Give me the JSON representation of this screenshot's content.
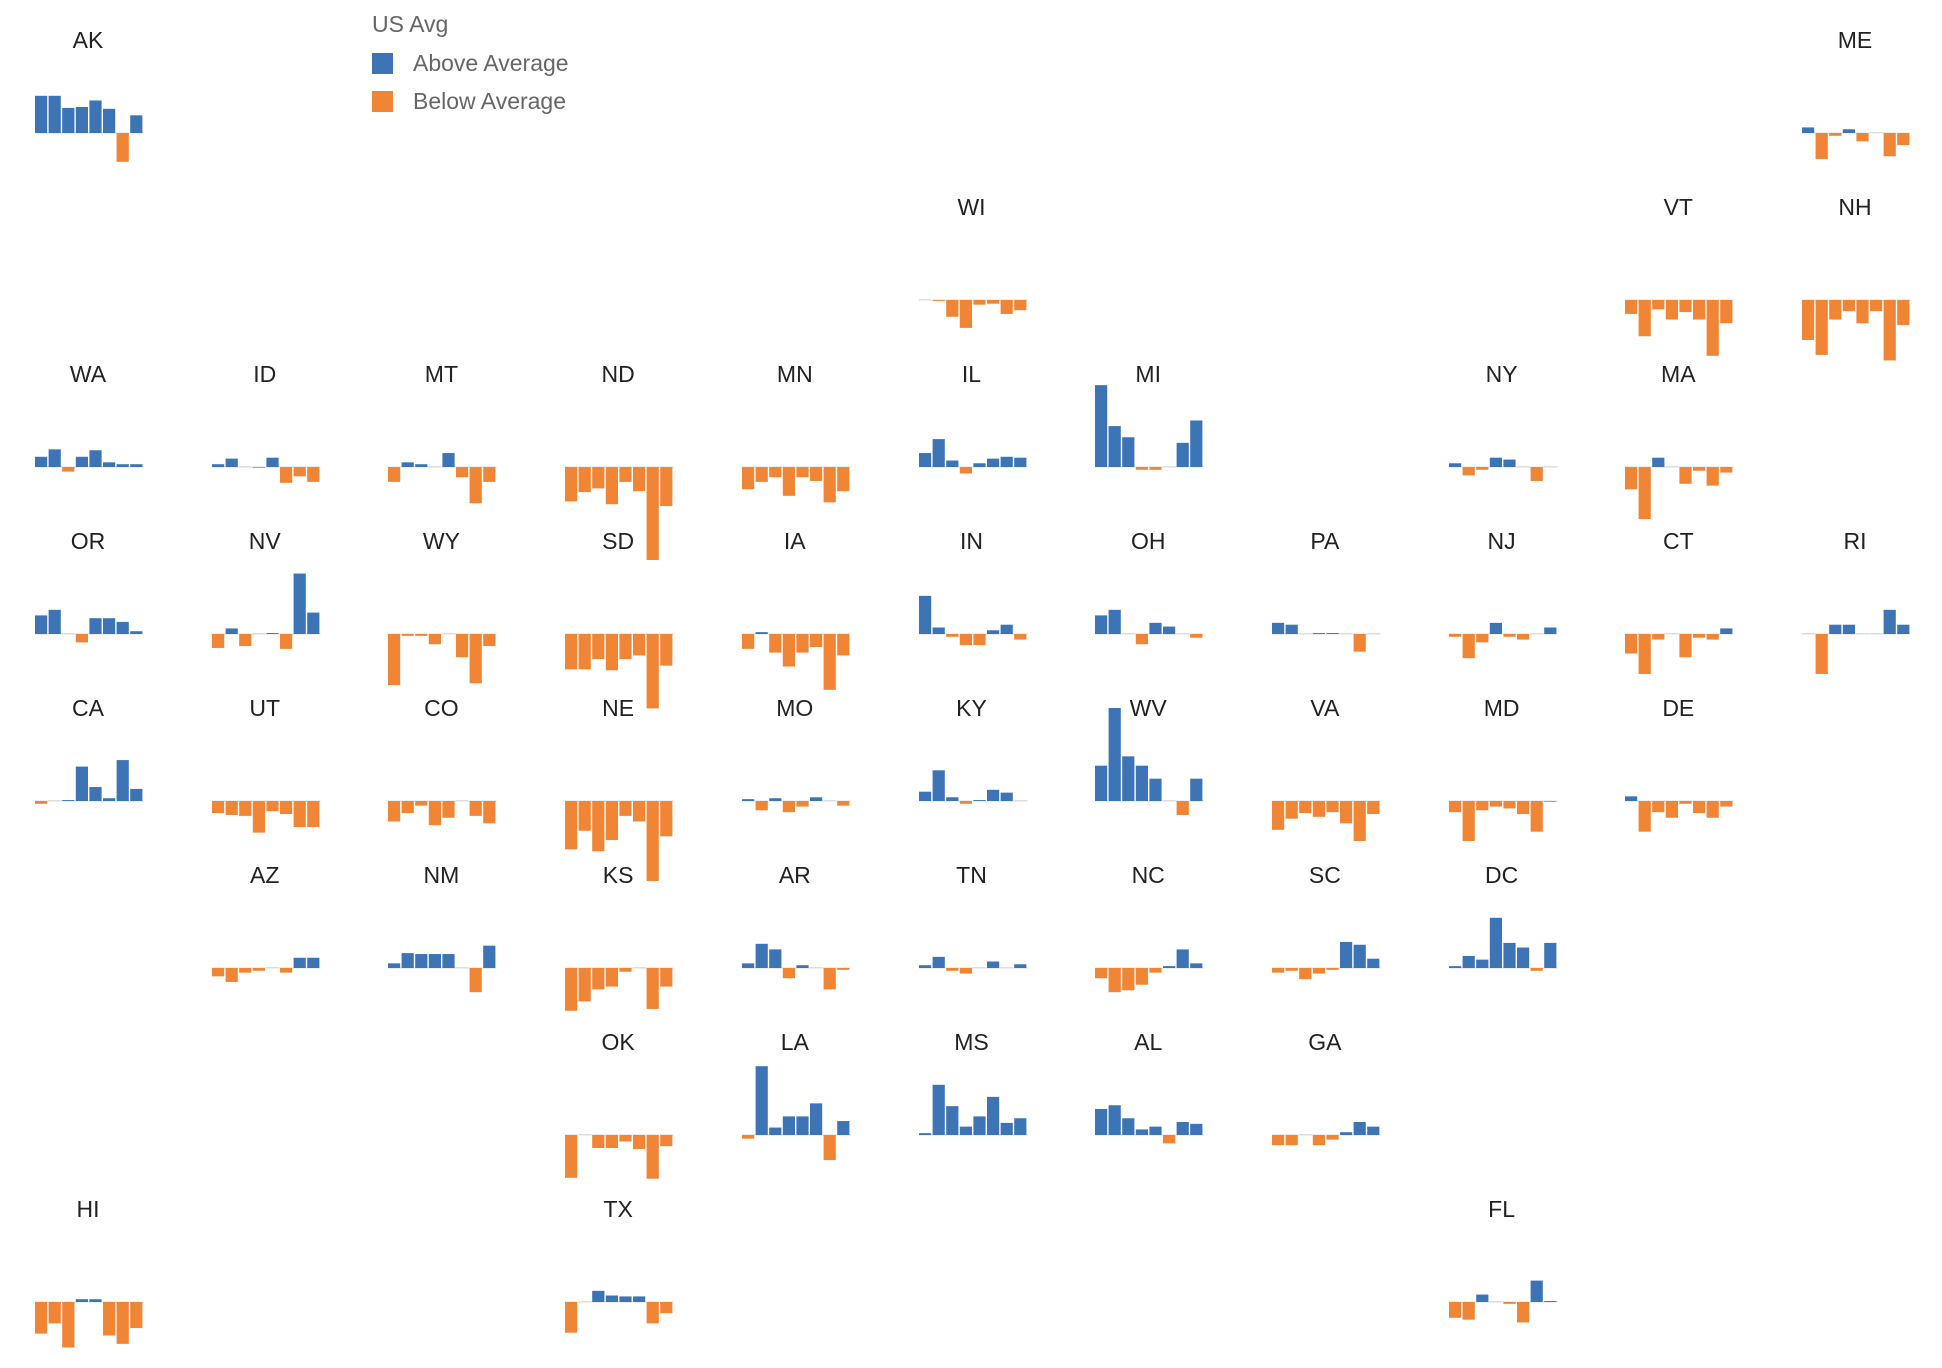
{
  "legend": {
    "title": "US Avg",
    "above_label": "Above Average",
    "below_label": "Below Average"
  },
  "colors": {
    "above": "#3d74b5",
    "below": "#f08535",
    "baseline": "#dddddd"
  },
  "chart_data": {
    "type": "bar",
    "layout": "tile-grid map of small-multiple bar charts",
    "legend_placement": "top-left",
    "grid": false,
    "bars_per_state": 8,
    "value_unit": "difference from US average (approx., relative scale)",
    "ylim": [
      -9,
      9
    ],
    "states": [
      {
        "state": "AK",
        "row": 0,
        "col": 0,
        "values": [
          4,
          4,
          2.7,
          2.8,
          3.5,
          2.6,
          -3.1,
          1.9
        ]
      },
      {
        "state": "ME",
        "row": 0,
        "col": 10,
        "values": [
          0.6,
          -2.8,
          -0.3,
          0.4,
          -0.9,
          0,
          -2.5,
          -1.3
        ]
      },
      {
        "state": "WI",
        "row": 1,
        "col": 5,
        "values": [
          0,
          -0.1,
          -1.8,
          -3,
          -0.5,
          -0.4,
          -1.5,
          -1.1
        ]
      },
      {
        "state": "VT",
        "row": 1,
        "col": 9,
        "values": [
          -1.5,
          -3.9,
          -1,
          -2.1,
          -1.3,
          -2.1,
          -6,
          -2.5
        ]
      },
      {
        "state": "NH",
        "row": 1,
        "col": 10,
        "values": [
          -4.3,
          -5.9,
          -2.1,
          -1.2,
          -2.5,
          -1.2,
          -6.5,
          -2.7
        ]
      },
      {
        "state": "WA",
        "row": 2,
        "col": 0,
        "values": [
          1.1,
          1.9,
          -0.5,
          1.1,
          1.8,
          0.5,
          0.3,
          0.3
        ]
      },
      {
        "state": "ID",
        "row": 2,
        "col": 1,
        "values": [
          0.3,
          0.9,
          0,
          -0.1,
          1,
          -1.7,
          -1,
          -1.6
        ]
      },
      {
        "state": "MT",
        "row": 2,
        "col": 2,
        "values": [
          -1.6,
          0.5,
          0.3,
          0,
          1.5,
          -1.1,
          -3.9,
          -1.6
        ]
      },
      {
        "state": "ND",
        "row": 2,
        "col": 3,
        "values": [
          -3.7,
          -2.7,
          -2.3,
          -4,
          -1.6,
          -2.6,
          -10,
          -4.2
        ]
      },
      {
        "state": "MN",
        "row": 2,
        "col": 4,
        "values": [
          -2.4,
          -1.6,
          -1.1,
          -3.1,
          -1.1,
          -1.5,
          -3.8,
          -2.6
        ]
      },
      {
        "state": "IL",
        "row": 2,
        "col": 5,
        "values": [
          1.5,
          3,
          0.7,
          -0.7,
          0.4,
          0.9,
          1.1,
          1
        ]
      },
      {
        "state": "MI",
        "row": 2,
        "col": 6,
        "values": [
          8.8,
          4.4,
          3.2,
          -0.3,
          -0.3,
          0,
          2.6,
          5
        ]
      },
      {
        "state": "NY",
        "row": 2,
        "col": 8,
        "values": [
          0.4,
          -0.9,
          -0.3,
          1,
          0.8,
          0,
          -1.5,
          0
        ]
      },
      {
        "state": "MA",
        "row": 2,
        "col": 9,
        "values": [
          -2.4,
          -5.6,
          1,
          0,
          -1.8,
          -0.4,
          -2,
          -0.6
        ]
      },
      {
        "state": "OR",
        "row": 3,
        "col": 0,
        "values": [
          2,
          2.6,
          0,
          -0.9,
          1.7,
          1.7,
          1.3,
          0.3
        ]
      },
      {
        "state": "NV",
        "row": 3,
        "col": 1,
        "values": [
          -1.5,
          0.6,
          -1.3,
          0,
          0.1,
          -1.6,
          6.5,
          2.3
        ]
      },
      {
        "state": "WY",
        "row": 3,
        "col": 2,
        "values": [
          -5.5,
          -0.2,
          -0.2,
          -1.1,
          0,
          -2.5,
          -5.3,
          -1.3
        ]
      },
      {
        "state": "SD",
        "row": 3,
        "col": 3,
        "values": [
          -3.8,
          -3.8,
          -2.7,
          -3.9,
          -2.7,
          -2.3,
          -8,
          -3.4
        ]
      },
      {
        "state": "IA",
        "row": 3,
        "col": 4,
        "values": [
          -1.6,
          0.2,
          -2,
          -3.5,
          -2,
          -1.4,
          -6,
          -2.3
        ]
      },
      {
        "state": "IN",
        "row": 3,
        "col": 5,
        "values": [
          4.1,
          0.7,
          -0.3,
          -1.2,
          -1.2,
          0.4,
          1,
          -0.6
        ]
      },
      {
        "state": "OH",
        "row": 3,
        "col": 6,
        "values": [
          2,
          2.6,
          0,
          -1.1,
          1.2,
          0.8,
          0,
          -0.4
        ]
      },
      {
        "state": "PA",
        "row": 3,
        "col": 7,
        "values": [
          1.2,
          1,
          0,
          0.1,
          0.1,
          0,
          -1.9,
          0
        ]
      },
      {
        "state": "NJ",
        "row": 3,
        "col": 8,
        "values": [
          -0.3,
          -2.6,
          -0.9,
          1.2,
          -0.3,
          -0.6,
          0,
          0.7
        ]
      },
      {
        "state": "CT",
        "row": 3,
        "col": 9,
        "values": [
          -2.1,
          -4.3,
          -0.6,
          0,
          -2.5,
          -0.4,
          -0.6,
          0.6
        ]
      },
      {
        "state": "RI",
        "row": 3,
        "col": 10,
        "values": [
          0,
          -4.3,
          1,
          1,
          0,
          0,
          2.6,
          1
        ]
      },
      {
        "state": "CA",
        "row": 4,
        "col": 0,
        "values": [
          -0.3,
          0,
          0.1,
          3.7,
          1.5,
          0.3,
          4.4,
          1.3
        ]
      },
      {
        "state": "UT",
        "row": 4,
        "col": 1,
        "values": [
          -1.3,
          -1.5,
          -1.6,
          -3.4,
          -1.1,
          -1.4,
          -2.8,
          -2.8
        ]
      },
      {
        "state": "CO",
        "row": 4,
        "col": 2,
        "values": [
          -2.2,
          -1.3,
          -0.5,
          -2.6,
          -1.8,
          0,
          -1.6,
          -2.4
        ]
      },
      {
        "state": "NE",
        "row": 4,
        "col": 3,
        "values": [
          -5.2,
          -3.2,
          -5.4,
          -4.2,
          -1.6,
          -2.2,
          -8.6,
          -3.8
        ]
      },
      {
        "state": "MO",
        "row": 4,
        "col": 4,
        "values": [
          0.2,
          -1,
          0.3,
          -1.2,
          -0.6,
          0.4,
          0,
          -0.5
        ]
      },
      {
        "state": "KY",
        "row": 4,
        "col": 5,
        "values": [
          1,
          3.3,
          0.4,
          -0.3,
          0.1,
          1.2,
          0.9,
          0
        ]
      },
      {
        "state": "WV",
        "row": 4,
        "col": 6,
        "values": [
          3.8,
          10,
          4.8,
          3.8,
          2.4,
          0,
          -1.5,
          2.4
        ]
      },
      {
        "state": "VA",
        "row": 4,
        "col": 7,
        "values": [
          -3.1,
          -1.9,
          -1.3,
          -1.7,
          -1.2,
          -2.4,
          -4.3,
          -1.4
        ]
      },
      {
        "state": "MD",
        "row": 4,
        "col": 8,
        "values": [
          -1.2,
          -4.3,
          -1,
          -0.6,
          -0.8,
          -1.4,
          -3.3,
          -0.1
        ]
      },
      {
        "state": "DE",
        "row": 4,
        "col": 9,
        "values": [
          0.5,
          -3.3,
          -1.2,
          -1.8,
          -0.3,
          -1.3,
          -1.8,
          -0.6
        ]
      },
      {
        "state": "AZ",
        "row": 5,
        "col": 1,
        "values": [
          -0.9,
          -1.5,
          -0.5,
          -0.3,
          0,
          -0.5,
          1.1,
          1.1
        ]
      },
      {
        "state": "NM",
        "row": 5,
        "col": 2,
        "values": [
          0.5,
          1.6,
          1.5,
          1.5,
          1.5,
          0,
          -2.6,
          2.4
        ]
      },
      {
        "state": "KS",
        "row": 5,
        "col": 3,
        "values": [
          -4.6,
          -3.6,
          -2.3,
          -2,
          -0.4,
          0,
          -4.4,
          -2
        ]
      },
      {
        "state": "AR",
        "row": 5,
        "col": 4,
        "values": [
          0.5,
          2.6,
          2,
          -1.1,
          0.3,
          0,
          -2.3,
          -0.2
        ]
      },
      {
        "state": "TN",
        "row": 5,
        "col": 5,
        "values": [
          0.3,
          1.2,
          -0.3,
          -0.6,
          0,
          0.7,
          0,
          0.4
        ]
      },
      {
        "state": "NC",
        "row": 5,
        "col": 6,
        "values": [
          -1.1,
          -2.6,
          -2.4,
          -1.8,
          -0.5,
          0.2,
          2,
          0.5
        ]
      },
      {
        "state": "SC",
        "row": 5,
        "col": 7,
        "values": [
          -0.5,
          -0.3,
          -1.2,
          -0.6,
          -0.2,
          2.8,
          2.5,
          1
        ]
      },
      {
        "state": "DC",
        "row": 5,
        "col": 8,
        "values": [
          0.2,
          1.3,
          0.9,
          5.4,
          2.7,
          2.2,
          -0.3,
          2.7
        ]
      },
      {
        "state": "OK",
        "row": 6,
        "col": 3,
        "values": [
          -4.6,
          0,
          -1.4,
          -1.4,
          -0.7,
          -1.5,
          -4.7,
          -1.2
        ]
      },
      {
        "state": "LA",
        "row": 6,
        "col": 4,
        "values": [
          -0.4,
          7.4,
          0.8,
          2,
          2,
          3.4,
          -2.7,
          1.5
        ]
      },
      {
        "state": "MS",
        "row": 6,
        "col": 5,
        "values": [
          0.2,
          5.4,
          3.1,
          0.9,
          2,
          4.1,
          1.3,
          1.8
        ]
      },
      {
        "state": "AL",
        "row": 6,
        "col": 6,
        "values": [
          2.8,
          3.2,
          1.8,
          0.6,
          0.9,
          -0.9,
          1.4,
          1.2
        ]
      },
      {
        "state": "GA",
        "row": 6,
        "col": 7,
        "values": [
          -1.1,
          -1.1,
          0,
          -1.1,
          -0.5,
          0.3,
          1.4,
          0.9
        ]
      },
      {
        "state": "HI",
        "row": 7,
        "col": 0,
        "values": [
          -3.4,
          -2.3,
          -4.9,
          0.3,
          0.3,
          -3.6,
          -4.5,
          -2.8
        ]
      },
      {
        "state": "TX",
        "row": 7,
        "col": 3,
        "values": [
          -3.3,
          0,
          1.2,
          0.7,
          0.6,
          0.6,
          -2.3,
          -1.2
        ]
      },
      {
        "state": "FL",
        "row": 7,
        "col": 8,
        "values": [
          -1.7,
          -1.9,
          0.8,
          0,
          -0.2,
          -2.2,
          2.3,
          0.1
        ]
      }
    ]
  }
}
